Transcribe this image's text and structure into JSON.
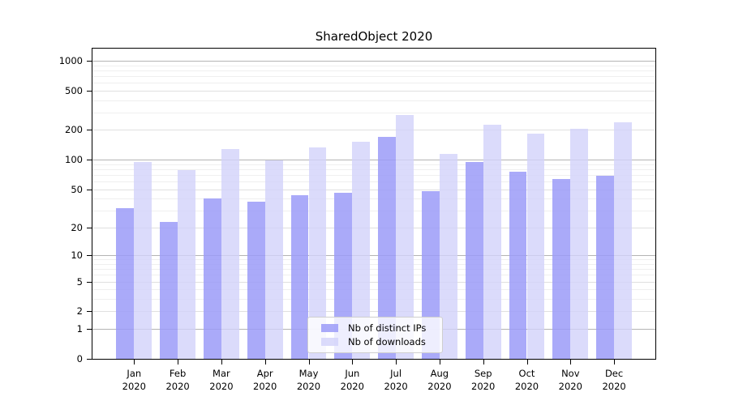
{
  "title": "SharedObject 2020",
  "colors": {
    "distinct_ips_bar": "rgba(155,155,248,0.85)",
    "downloads_bar": "rgba(210,210,250,0.8)",
    "grid_power10": "#b4b4b4",
    "grid_major": "#e0e0e0",
    "grid_minor": "#efefef",
    "axis": "#000000"
  },
  "legend": {
    "items": [
      {
        "label": "Nb of distinct IPs",
        "color": "rgba(155,155,248,0.85)"
      },
      {
        "label": "Nb of downloads",
        "color": "rgba(210,210,250,0.8)"
      }
    ]
  },
  "chart_data": {
    "type": "bar",
    "title": "SharedObject 2020",
    "xlabel": "",
    "ylabel": "",
    "yscale": "symlog",
    "grid": true,
    "legend_position": "lower-center-inside",
    "categories": [
      "Jan",
      "Feb",
      "Mar",
      "Apr",
      "May",
      "Jun",
      "Jul",
      "Aug",
      "Sep",
      "Oct",
      "Nov",
      "Dec"
    ],
    "year_label": "2020",
    "series": [
      {
        "name": "Nb of distinct IPs",
        "values": [
          32,
          23,
          40,
          37,
          43,
          46,
          170,
          48,
          95,
          76,
          63,
          69
        ]
      },
      {
        "name": "Nb of downloads",
        "values": [
          95,
          79,
          129,
          99,
          134,
          153,
          285,
          115,
          225,
          184,
          205,
          240
        ]
      }
    ],
    "y_ticks": [
      0,
      1,
      2,
      5,
      10,
      20,
      50,
      100,
      200,
      500,
      1000
    ],
    "y_minor_ticks": [
      3,
      4,
      6,
      7,
      8,
      9,
      30,
      40,
      60,
      70,
      80,
      90,
      300,
      400,
      600,
      700,
      800,
      900
    ],
    "ylim": [
      0,
      1350
    ]
  }
}
